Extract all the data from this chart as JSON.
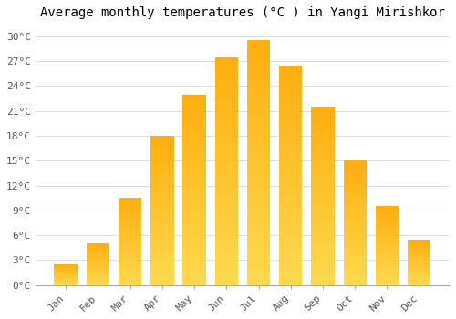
{
  "title": "Average monthly temperatures (°C ) in Yangi Mirishkor",
  "months": [
    "Jan",
    "Feb",
    "Mar",
    "Apr",
    "May",
    "Jun",
    "Jul",
    "Aug",
    "Sep",
    "Oct",
    "Nov",
    "Dec"
  ],
  "values": [
    2.5,
    5.0,
    10.5,
    18.0,
    23.0,
    27.5,
    29.5,
    26.5,
    21.5,
    15.0,
    9.5,
    5.5
  ],
  "bar_color_top": "#FFB700",
  "bar_color_bottom": "#FFD966",
  "bar_edge_color": "#E8A000",
  "background_color": "#FFFFFF",
  "grid_color": "#DDDDDD",
  "yticks": [
    0,
    3,
    6,
    9,
    12,
    15,
    18,
    21,
    24,
    27,
    30
  ],
  "ylim": [
    0,
    31.5
  ],
  "title_fontsize": 10,
  "tick_fontsize": 8,
  "font_family": "monospace"
}
